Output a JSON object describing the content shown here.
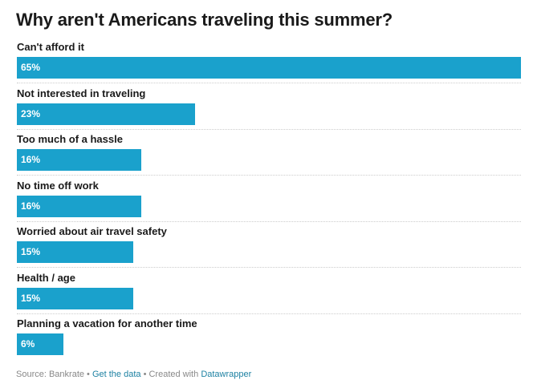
{
  "chart_data": {
    "type": "bar",
    "orientation": "horizontal",
    "title": "Why aren't Americans traveling this summer?",
    "categories": [
      "Can't afford it",
      "Not interested in traveling",
      "Too much of a hassle",
      "No time off work",
      "Worried about air travel safety",
      "Health / age",
      "Planning a vacation for another time"
    ],
    "values": [
      65,
      23,
      16,
      16,
      15,
      15,
      6
    ],
    "value_labels": [
      "65%",
      "23%",
      "16%",
      "16%",
      "15%",
      "15%",
      "6%"
    ],
    "unit": "%",
    "xlim": [
      0,
      65
    ],
    "grid": false,
    "bar_color": "#1aa1cc"
  },
  "footer": {
    "source": "Source: Bankrate",
    "sep": " • ",
    "get_data": "Get the data",
    "created": "Created with",
    "datawrapper": "Datawrapper"
  }
}
